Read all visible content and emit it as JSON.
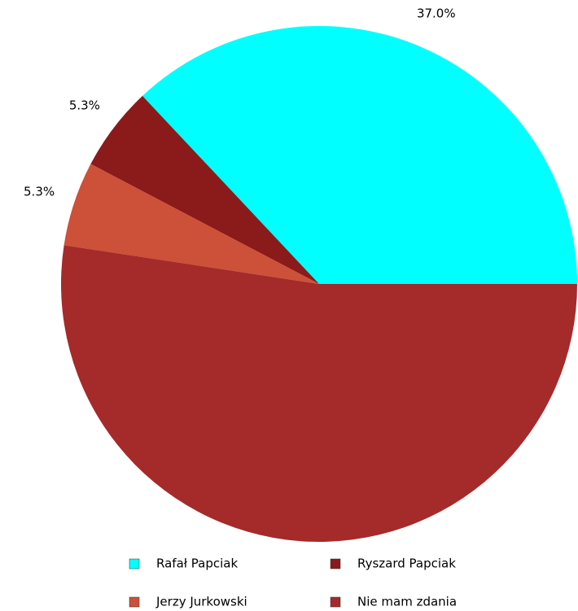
{
  "chart_data": {
    "type": "pie",
    "categories": [
      "Rafał Papciak",
      "Ryszard Papciak",
      "Jerzy Jurkowski",
      "Nie mam zdania"
    ],
    "values": [
      37.0,
      5.3,
      5.3,
      52.4
    ],
    "value_labels": [
      "37.0%",
      "5.3%",
      "5.3%",
      null
    ],
    "colors": [
      "#00ffff",
      "#8b1a1a",
      "#cd5038",
      "#a52a2a"
    ],
    "legend": "bottom"
  }
}
